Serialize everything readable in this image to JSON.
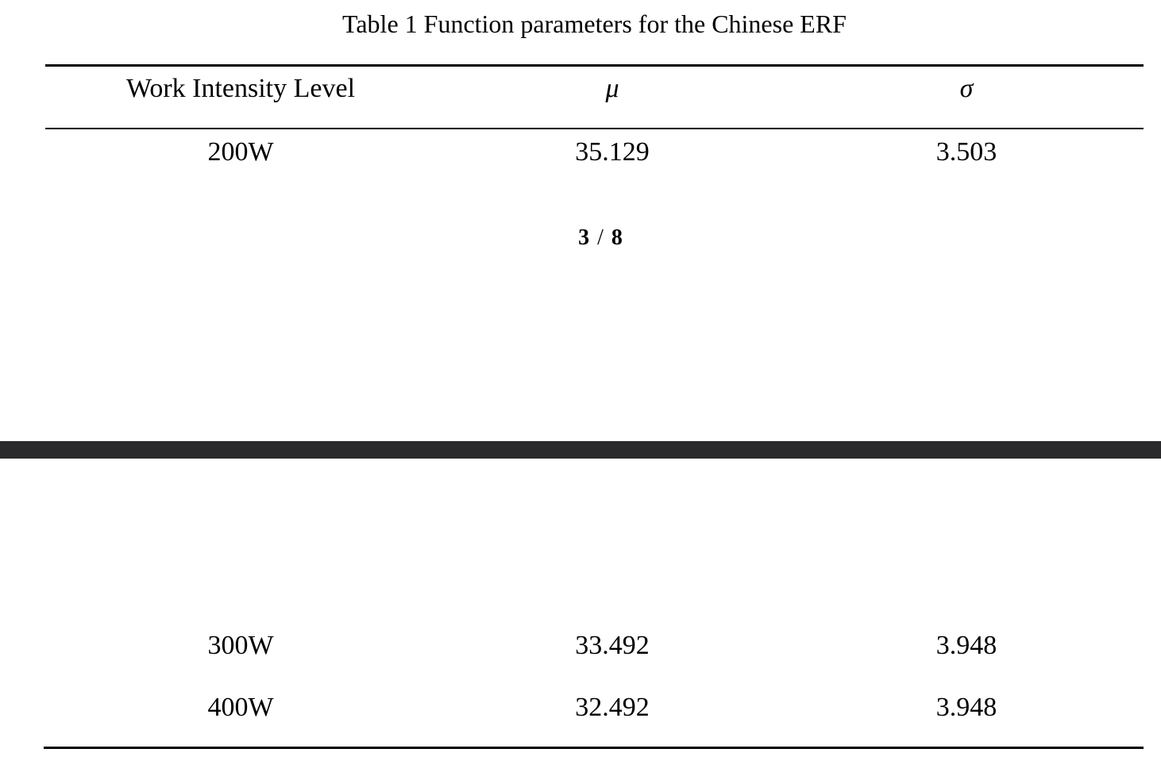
{
  "caption": "Table 1 Function parameters for the Chinese ERF",
  "table": {
    "headers": [
      "Work Intensity Level",
      "μ",
      "σ"
    ],
    "rows": [
      [
        "200W",
        "35.129",
        "3.503"
      ],
      [
        "300W",
        "33.492",
        "3.948"
      ],
      [
        "400W",
        "32.492",
        "3.948"
      ]
    ]
  },
  "page_indicator": {
    "current": "3",
    "separator": "/",
    "total": "8"
  },
  "colors": {
    "page_break_bar": "#2a2a2c",
    "text": "#000000",
    "background": "#ffffff"
  }
}
